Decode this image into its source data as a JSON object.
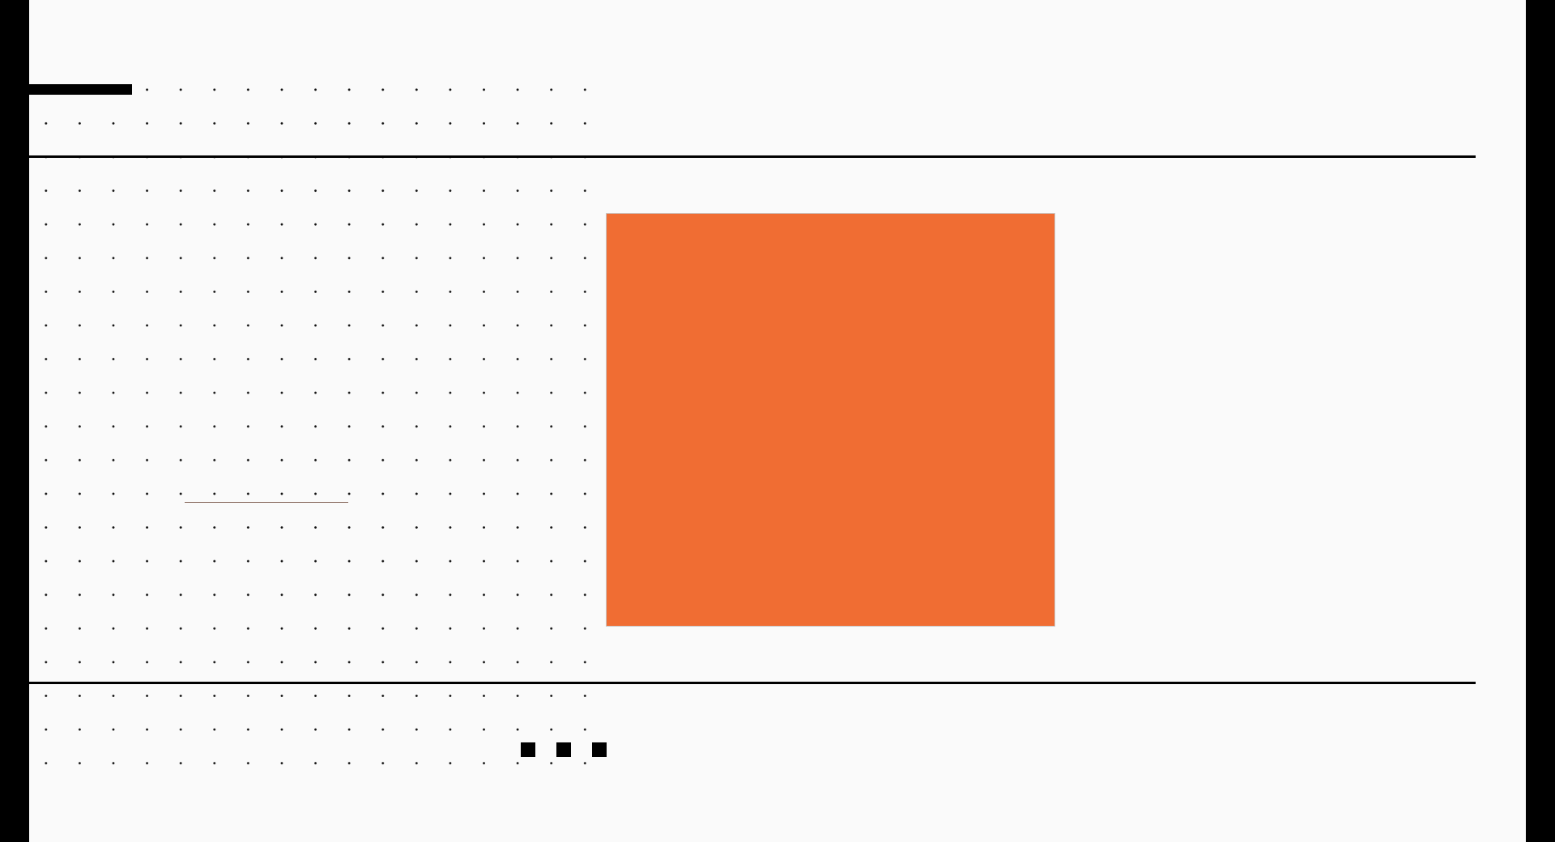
{
  "slide": {
    "colors": {
      "background": "#fafafa",
      "border": "#000000",
      "accent": "#f06d33",
      "grid_dot": "#111111"
    },
    "decorations": {
      "square_count": 3
    }
  }
}
